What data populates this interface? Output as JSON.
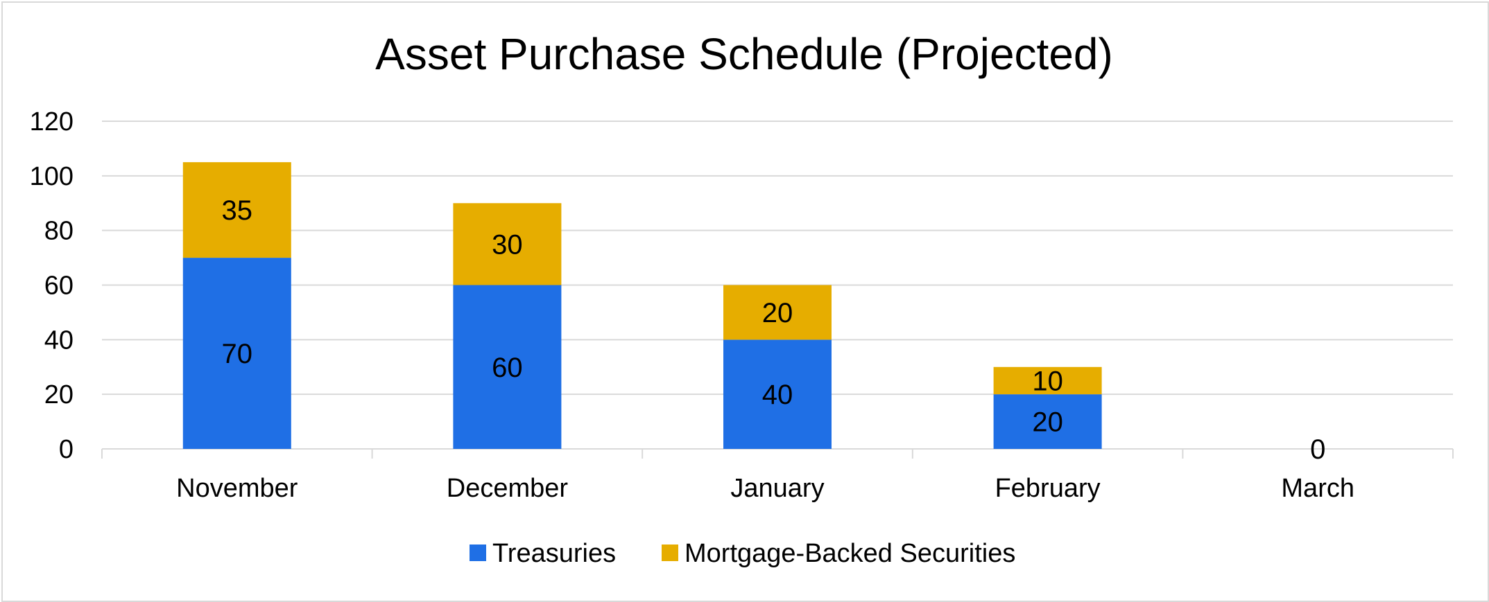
{
  "chart_data": {
    "type": "bar",
    "stacked": true,
    "title": "Asset Purchase Schedule (Projected)",
    "categories": [
      "November",
      "December",
      "January",
      "February",
      "March"
    ],
    "series": [
      {
        "name": "Treasuries",
        "values": [
          70,
          60,
          40,
          20,
          0
        ],
        "color": "#1f6fe5"
      },
      {
        "name": "Mortgage-Backed Securities",
        "values": [
          35,
          30,
          20,
          10,
          0
        ],
        "color": "#e6ad00"
      }
    ],
    "data_labels": {
      "Treasuries": [
        "70",
        "60",
        "40",
        "20",
        "0"
      ],
      "Mortgage-Backed Securities": [
        "35",
        "30",
        "20",
        "10",
        ""
      ]
    },
    "yticks": [
      "0",
      "20",
      "40",
      "60",
      "80",
      "100",
      "120"
    ],
    "ylim": [
      0,
      120
    ],
    "grid": true,
    "legend": "bottom",
    "xlabel": "",
    "ylabel": ""
  }
}
